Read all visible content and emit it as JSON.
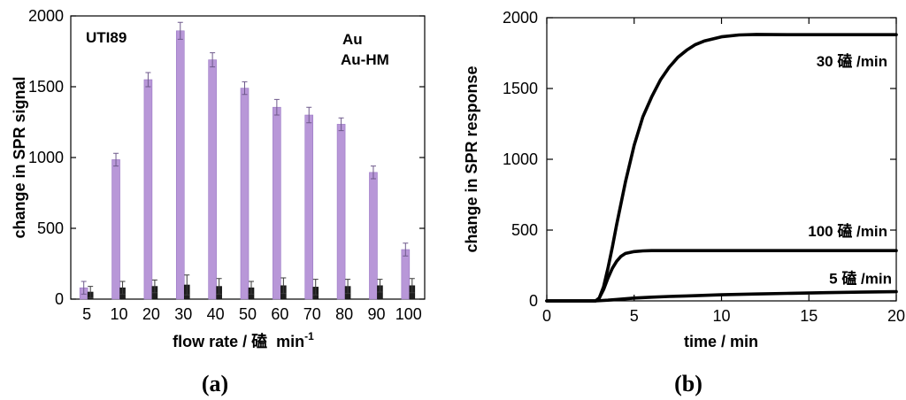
{
  "chart_data": [
    {
      "panel_label": "(a)",
      "type": "bar",
      "annotation": "UTI89",
      "categories": [
        "5",
        "10",
        "20",
        "30",
        "40",
        "50",
        "60",
        "70",
        "80",
        "90",
        "100"
      ],
      "series": [
        {
          "name": "Au",
          "color": "#1e1e1e",
          "text_color": "#000000",
          "values": [
            50,
            80,
            90,
            100,
            90,
            80,
            95,
            85,
            90,
            95,
            95
          ],
          "errors": [
            40,
            45,
            45,
            70,
            55,
            45,
            55,
            55,
            50,
            45,
            50
          ]
        },
        {
          "name": "Au-HM",
          "color": "#b897d8",
          "text_color": "#b55bd8",
          "values": [
            80,
            985,
            1550,
            1895,
            1690,
            1490,
            1355,
            1300,
            1235,
            895,
            350
          ],
          "errors": [
            45,
            45,
            50,
            60,
            50,
            45,
            55,
            55,
            45,
            45,
            45
          ]
        }
      ],
      "xlabel": "flow rate / 磕  min",
      "xlabel_superscript": "-1",
      "ylabel": "change in SPR signal",
      "ylim": [
        0,
        2000
      ],
      "yticks": [
        0,
        500,
        1000,
        1500,
        2000
      ],
      "error_bars": true,
      "legend": "top-right",
      "grid": false
    },
    {
      "panel_label": "(b)",
      "type": "line",
      "series": [
        {
          "name": "30 磕 /min",
          "color": "#000000",
          "x": [
            0,
            2.8,
            3.0,
            3.25,
            3.5,
            3.75,
            4.0,
            4.5,
            5.0,
            5.5,
            6.0,
            6.5,
            7.0,
            7.5,
            8.0,
            8.5,
            9.0,
            10.0,
            11.0,
            12.0,
            14.0,
            16.0,
            18.0,
            20.0
          ],
          "y": [
            0,
            0,
            20,
            100,
            230,
            380,
            540,
            840,
            1100,
            1300,
            1440,
            1560,
            1650,
            1720,
            1770,
            1810,
            1835,
            1865,
            1878,
            1882,
            1880,
            1880,
            1880,
            1880
          ]
        },
        {
          "name": "100 磕 /min",
          "color": "#000000",
          "x": [
            0,
            2.8,
            3.0,
            3.25,
            3.5,
            3.75,
            4.0,
            4.25,
            4.5,
            5.0,
            5.5,
            6.0,
            8.0,
            10.0,
            15.0,
            20.0
          ],
          "y": [
            0,
            0,
            20,
            80,
            160,
            230,
            280,
            315,
            335,
            348,
            353,
            355,
            355,
            355,
            355,
            355
          ]
        },
        {
          "name": "5 磕 /min",
          "color": "#000000",
          "x": [
            0,
            2.8,
            3.5,
            4.0,
            5.0,
            6.0,
            7.0,
            8.0,
            10.0,
            12.0,
            14.0,
            16.0,
            18.0,
            20.0
          ],
          "y": [
            0,
            0,
            5,
            10,
            20,
            26,
            31,
            35,
            43,
            49,
            54,
            58,
            62,
            65
          ]
        }
      ],
      "xlabel": "time / min",
      "ylabel": "change in SPR response",
      "xlim": [
        0,
        20
      ],
      "ylim": [
        0,
        2000
      ],
      "xticks": [
        0,
        5,
        10,
        15,
        20
      ],
      "yticks": [
        0,
        500,
        1000,
        1500,
        2000
      ],
      "legend": "right",
      "grid": false
    }
  ]
}
